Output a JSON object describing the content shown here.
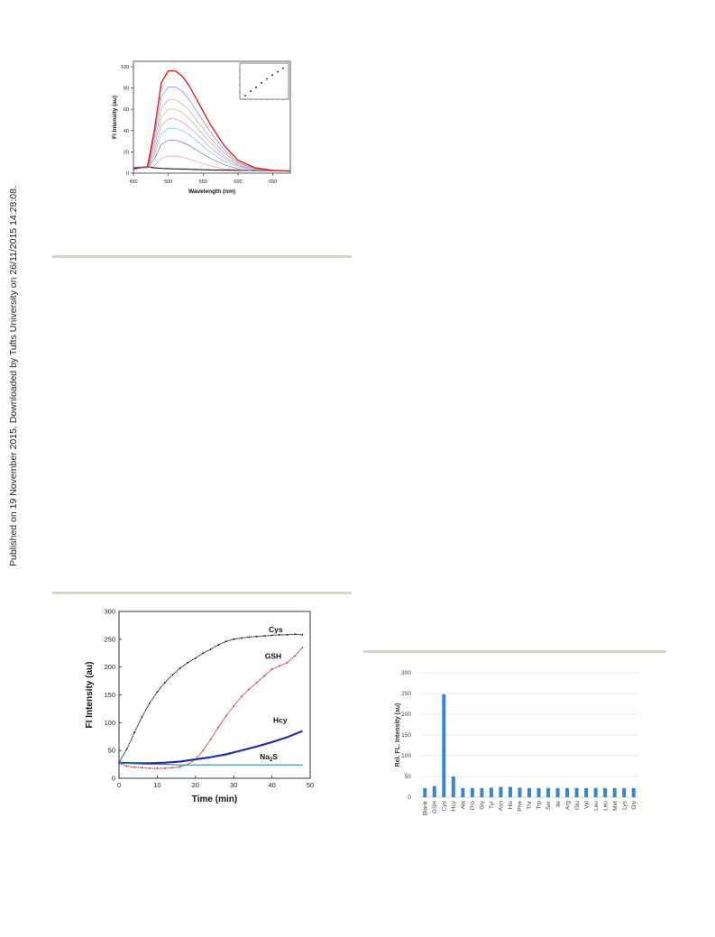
{
  "margin_note": "Published on 19 November 2015. Downloaded by Tufts University on 26/11/2015 14:28:08.",
  "chart_data": [
    {
      "type": "line",
      "title": "",
      "xlabel": "Wavelength (nm)",
      "ylabel": "Fl Intensity (au)",
      "xlim": [
        450,
        675
      ],
      "ylim": [
        0,
        105
      ],
      "xticks": [
        "450",
        "500",
        "550",
        "600",
        "650"
      ],
      "yticks": [
        "0",
        "20",
        "40",
        "60",
        "80",
        "100"
      ],
      "legend": "none",
      "x": [
        450,
        470,
        480,
        490,
        500,
        510,
        520,
        530,
        540,
        550,
        560,
        580,
        600,
        625,
        650,
        675
      ],
      "series": [
        {
          "color": "#e02020",
          "values": [
            5,
            6,
            40,
            85,
            96,
            96,
            91,
            82,
            70,
            58,
            46,
            26,
            12,
            5,
            2.5,
            2
          ]
        },
        {
          "color": "#6677dd",
          "values": [
            5,
            5,
            34,
            72,
            81,
            81,
            77,
            69,
            59,
            49,
            39,
            22,
            10,
            4,
            2,
            2
          ]
        },
        {
          "color": "#cc8899",
          "values": [
            5,
            5,
            29,
            61,
            69,
            69,
            65,
            59,
            50,
            42,
            33,
            19,
            9,
            4,
            2,
            2
          ]
        },
        {
          "color": "#99bb66",
          "values": [
            5,
            5,
            25,
            53,
            60,
            60,
            57,
            51,
            44,
            36,
            29,
            16,
            8,
            3,
            2,
            2
          ]
        },
        {
          "color": "#cc77cc",
          "values": [
            5,
            5,
            21,
            45,
            51,
            51,
            48,
            43,
            37,
            31,
            24,
            14,
            7,
            3,
            2,
            2
          ]
        },
        {
          "color": "#66bbcc",
          "values": [
            5,
            5,
            17,
            37,
            42,
            42,
            40,
            36,
            31,
            25,
            20,
            11,
            6,
            3,
            2,
            2
          ]
        },
        {
          "color": "#6655cc",
          "values": [
            5,
            5,
            13,
            27,
            31,
            31,
            29,
            26,
            22,
            18,
            14,
            8,
            4,
            2,
            2,
            2
          ]
        },
        {
          "color": "#ee8888",
          "values": [
            5,
            5,
            7,
            14,
            16,
            16,
            15,
            13,
            11,
            9,
            7,
            4,
            3,
            2,
            2,
            2
          ]
        },
        {
          "color": "#222222",
          "values": [
            4,
            6,
            5,
            4.5,
            4.2,
            4,
            3.8,
            3.6,
            3.4,
            3.2,
            3,
            2.8,
            2.6,
            2.4,
            2.2,
            2
          ]
        }
      ],
      "inset": {
        "type": "scatter",
        "x": [
          1,
          2,
          3,
          4,
          5,
          6,
          7,
          8
        ],
        "y": [
          10,
          22,
          33,
          45,
          56,
          67,
          76,
          86
        ],
        "xlim": [
          0,
          9
        ],
        "ylim": [
          0,
          100
        ]
      }
    },
    {
      "type": "line",
      "title": "",
      "xlabel": "Time (min)",
      "ylabel": "FI Intensity (au)",
      "xlim": [
        0,
        50
      ],
      "ylim": [
        0,
        300
      ],
      "xticks": [
        "0",
        "10",
        "20",
        "30",
        "40",
        "50"
      ],
      "yticks": [
        "0",
        "50",
        "100",
        "150",
        "200",
        "250",
        "300"
      ],
      "legend": "inline labels",
      "series": [
        {
          "name": "Cys",
          "color": "#111111",
          "x": [
            0,
            2,
            4,
            6,
            8,
            10,
            12,
            14,
            16,
            18,
            20,
            22,
            24,
            26,
            28,
            30,
            32,
            34,
            36,
            38,
            40,
            42,
            44,
            46,
            48
          ],
          "values": [
            28,
            52,
            82,
            110,
            135,
            155,
            172,
            186,
            198,
            208,
            216,
            225,
            232,
            240,
            246,
            250,
            252,
            254,
            255,
            256,
            257,
            258,
            258,
            259,
            258
          ]
        },
        {
          "name": "GSH",
          "color": "#dd2222",
          "x": [
            0,
            2,
            4,
            6,
            8,
            10,
            12,
            14,
            16,
            18,
            20,
            22,
            24,
            26,
            28,
            30,
            32,
            34,
            36,
            38,
            40,
            42,
            44,
            46,
            48
          ],
          "values": [
            27,
            22,
            20,
            19,
            18,
            18,
            18,
            19,
            21,
            25,
            34,
            50,
            70,
            92,
            112,
            130,
            147,
            160,
            172,
            184,
            196,
            202,
            208,
            220,
            235
          ]
        },
        {
          "name": "Hcy",
          "color": "#2233aa",
          "x": [
            0,
            4,
            8,
            12,
            16,
            20,
            24,
            28,
            32,
            36,
            40,
            44,
            48
          ],
          "values": [
            28,
            27,
            27,
            28,
            30,
            34,
            38,
            43,
            50,
            57,
            65,
            74,
            85
          ]
        },
        {
          "name": "Na2S",
          "color": "#22998a",
          "x": [
            0,
            4,
            8,
            12,
            16,
            20,
            24,
            28,
            32,
            36,
            40,
            44,
            48
          ],
          "values": [
            28,
            26,
            25,
            25,
            24,
            24,
            24,
            24,
            24,
            24,
            24,
            24,
            24
          ]
        }
      ],
      "annotations": [
        "Cys",
        "GSH",
        "Hcy",
        "Na",
        "2",
        "S"
      ]
    },
    {
      "type": "bar",
      "title": "",
      "xlabel": "",
      "ylabel": "Rel. FL. Intensity (au)",
      "ylim": [
        0,
        300
      ],
      "yticks": [
        "0",
        "50",
        "100",
        "150",
        "200",
        "250",
        "300"
      ],
      "grid": true,
      "legend": "none",
      "bar_color": "#3a86c8",
      "categories": [
        "Blank",
        "GSH",
        "Cys",
        "Hcy",
        "Ala",
        "Pro",
        "Gly",
        "Tyr",
        "Asn",
        "His",
        "Phe",
        "Thr",
        "Trp",
        "Ser",
        "Ile",
        "Arg",
        "Glu",
        "Val",
        "Leu",
        "Leu",
        "Met",
        "Lys",
        "Gly"
      ],
      "values": [
        22,
        27,
        248,
        50,
        22,
        22,
        22,
        23,
        25,
        25,
        23,
        22,
        22,
        22,
        22,
        22,
        22,
        22,
        22,
        22,
        22,
        22,
        22
      ]
    }
  ]
}
